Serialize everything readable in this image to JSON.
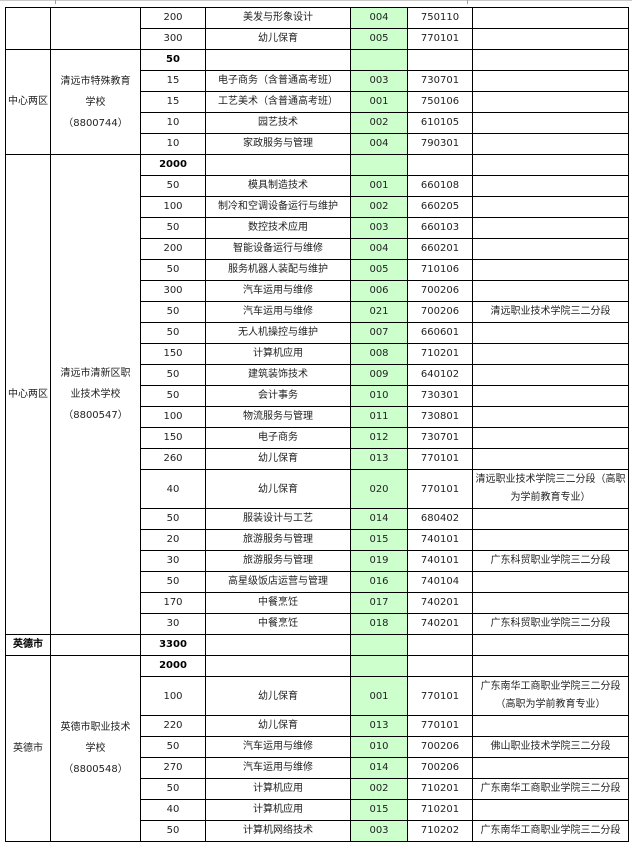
{
  "colors": {
    "code_column_bg": "#ccffcc",
    "border": "#000000"
  },
  "groups": [
    {
      "region": "",
      "school": [],
      "rows": [
        {
          "count": "200",
          "major": "美发与形象设计",
          "code": "004",
          "major_code": "750110",
          "note": ""
        },
        {
          "count": "300",
          "major": "幼儿保育",
          "code": "005",
          "major_code": "770101",
          "note": ""
        }
      ]
    },
    {
      "region": "中心两区",
      "school": [
        "清远市特殊教育",
        "学校",
        "（8800744）"
      ],
      "total": "50",
      "rows": [
        {
          "count": "15",
          "major": "电子商务（含普通高考班）",
          "code": "003",
          "major_code": "730701",
          "note": ""
        },
        {
          "count": "15",
          "major": "工艺美术（含普通高考班）",
          "code": "001",
          "major_code": "750106",
          "note": ""
        },
        {
          "count": "10",
          "major": "园艺技术",
          "code": "002",
          "major_code": "610105",
          "note": ""
        },
        {
          "count": "10",
          "major": "家政服务与管理",
          "code": "004",
          "major_code": "790301",
          "note": ""
        }
      ]
    },
    {
      "region": "中心两区",
      "school": [
        "清远市清新区职",
        "业技术学校",
        "（8800547）"
      ],
      "total": "2000",
      "rows": [
        {
          "count": "50",
          "major": "模具制造技术",
          "code": "001",
          "major_code": "660108",
          "note": ""
        },
        {
          "count": "100",
          "major": "制冷和空调设备运行与维护",
          "code": "002",
          "major_code": "660205",
          "note": ""
        },
        {
          "count": "50",
          "major": "数控技术应用",
          "code": "003",
          "major_code": "660103",
          "note": ""
        },
        {
          "count": "200",
          "major": "智能设备运行与维修",
          "code": "004",
          "major_code": "660201",
          "note": ""
        },
        {
          "count": "50",
          "major": "服务机器人装配与维护",
          "code": "005",
          "major_code": "710106",
          "note": ""
        },
        {
          "count": "300",
          "major": "汽车运用与维修",
          "code": "006",
          "major_code": "700206",
          "note": ""
        },
        {
          "count": "50",
          "major": "汽车运用与维修",
          "code": "021",
          "major_code": "700206",
          "note": "清远职业技术学院三二分段"
        },
        {
          "count": "50",
          "major": "无人机操控与维护",
          "code": "007",
          "major_code": "660601",
          "note": ""
        },
        {
          "count": "150",
          "major": "计算机应用",
          "code": "008",
          "major_code": "710201",
          "note": ""
        },
        {
          "count": "50",
          "major": "建筑装饰技术",
          "code": "009",
          "major_code": "640102",
          "note": ""
        },
        {
          "count": "50",
          "major": "会计事务",
          "code": "010",
          "major_code": "730301",
          "note": ""
        },
        {
          "count": "100",
          "major": "物流服务与管理",
          "code": "011",
          "major_code": "730801",
          "note": ""
        },
        {
          "count": "150",
          "major": "电子商务",
          "code": "012",
          "major_code": "730701",
          "note": ""
        },
        {
          "count": "260",
          "major": "幼儿保育",
          "code": "013",
          "major_code": "770101",
          "note": ""
        },
        {
          "count": "40",
          "major": "幼儿保育",
          "code": "020",
          "major_code": "770101",
          "note": "清远职业技术学院三二分段（高职为学前教育专业）"
        },
        {
          "count": "50",
          "major": "服装设计与工艺",
          "code": "014",
          "major_code": "680402",
          "note": ""
        },
        {
          "count": "20",
          "major": "旅游服务与管理",
          "code": "015",
          "major_code": "740101",
          "note": ""
        },
        {
          "count": "30",
          "major": "旅游服务与管理",
          "code": "019",
          "major_code": "740101",
          "note": "广东科贸职业学院三二分段"
        },
        {
          "count": "50",
          "major": "高星级饭店运营与管理",
          "code": "016",
          "major_code": "740104",
          "note": ""
        },
        {
          "count": "170",
          "major": "中餐烹饪",
          "code": "017",
          "major_code": "740201",
          "note": ""
        },
        {
          "count": "30",
          "major": "中餐烹饪",
          "code": "018",
          "major_code": "740201",
          "note": "广东科贸职业学院三二分段"
        }
      ]
    },
    {
      "city_total_row": true,
      "region": "英德市",
      "total": "3300"
    },
    {
      "region": "英德市",
      "school": [
        "英德市职业技术",
        "学校",
        "（8800548）"
      ],
      "total": "2000",
      "rows": [
        {
          "count": "100",
          "major": "幼儿保育",
          "code": "001",
          "major_code": "770101",
          "note": "广东南华工商职业学院三二分段（高职为学前教育专业）"
        },
        {
          "count": "220",
          "major": "幼儿保育",
          "code": "013",
          "major_code": "770101",
          "note": ""
        },
        {
          "count": "50",
          "major": "汽车运用与维修",
          "code": "010",
          "major_code": "700206",
          "note": "佛山职业技术学院三二分段"
        },
        {
          "count": "270",
          "major": "汽车运用与维修",
          "code": "014",
          "major_code": "700206",
          "note": ""
        },
        {
          "count": "50",
          "major": "计算机应用",
          "code": "002",
          "major_code": "710201",
          "note": "广东南华工商职业学院三二分段"
        },
        {
          "count": "40",
          "major": "计算机应用",
          "code": "015",
          "major_code": "710201",
          "note": ""
        },
        {
          "count": "50",
          "major": "计算机网络技术",
          "code": "003",
          "major_code": "710202",
          "note": "广东南华工商职业学院三二分段"
        }
      ]
    }
  ]
}
